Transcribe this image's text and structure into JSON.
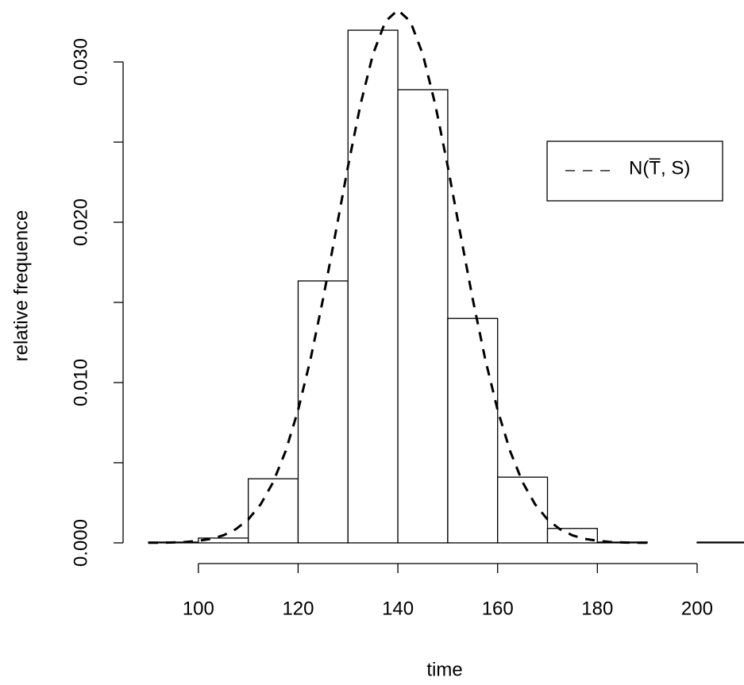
{
  "chart_data": {
    "type": "histogram",
    "x_label": "time",
    "y_label": "relative frequence",
    "bins": [
      90,
      100,
      110,
      120,
      130,
      140,
      150,
      160,
      170,
      180,
      190,
      200,
      210
    ],
    "values": [
      5e-05,
      0.0003,
      0.004,
      0.01634,
      0.03198,
      0.02827,
      0.014,
      0.0041,
      0.0009,
      5e-05,
      0,
      5e-05
    ],
    "color": "#ffffff",
    "xlim": [
      84.9,
      209.4
    ],
    "ylim": [
      -0.00129,
      0.03337
    ],
    "xticks": [
      100,
      120,
      140,
      160,
      180,
      200
    ],
    "yticks": [
      {
        "value": 0,
        "label": "0.000"
      },
      {
        "value": 0.005,
        "label": null
      },
      {
        "value": 0.01,
        "label": "0.010"
      },
      {
        "value": 0.015,
        "label": null
      },
      {
        "value": 0.02,
        "label": "0.020"
      },
      {
        "value": 0.025,
        "label": null
      },
      {
        "value": 0.03,
        "label": "0.030"
      }
    ],
    "curve": {
      "name": "N(T̅, S)",
      "color": "#000000",
      "x": [
        90,
        92.5,
        95,
        97.5,
        100,
        102.5,
        105,
        107.5,
        110,
        112.5,
        115,
        117.5,
        120,
        122.5,
        125,
        127.5,
        130,
        132.5,
        135,
        137.5,
        140,
        142.5,
        145,
        147.5,
        150,
        152.5,
        155,
        157.5,
        160,
        162.5,
        165,
        167.5,
        170,
        172.5,
        175,
        177.5,
        180,
        182.5,
        185,
        187.5,
        190
      ],
      "y": [
        1e-05,
        1e-05,
        3e-05,
        6e-05,
        0.00013,
        0.00025,
        0.00047,
        0.00085,
        0.00146,
        0.00241,
        0.00379,
        0.00573,
        0.00829,
        0.01148,
        0.01522,
        0.01932,
        0.02349,
        0.02734,
        0.03048,
        0.03253,
        0.03324,
        0.03253,
        0.03048,
        0.02734,
        0.02349,
        0.01932,
        0.01522,
        0.01148,
        0.00829,
        0.00573,
        0.00379,
        0.00241,
        0.00146,
        0.00085,
        0.00047,
        0.00025,
        0.00013,
        6e-05,
        3e-05,
        1e-05,
        1e-05
      ]
    },
    "legend": "upper-right"
  }
}
